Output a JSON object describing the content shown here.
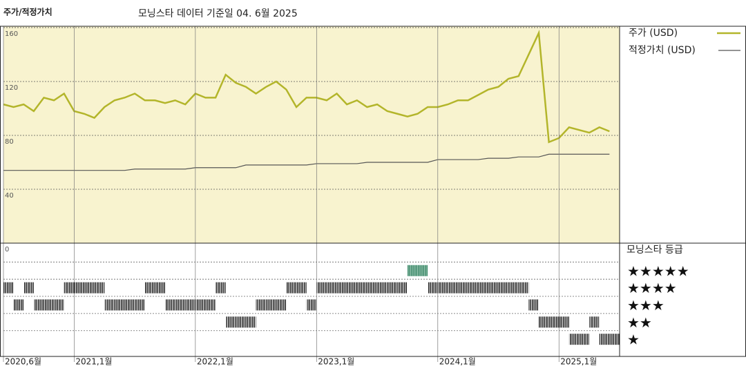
{
  "chart_data": [
    {
      "type": "line",
      "title": "주가/적정가치",
      "subtitle": "모닝스타 데이터 기준일 04. 6월 2025",
      "x": [
        "2020-06",
        "2020-07",
        "2020-08",
        "2020-09",
        "2020-10",
        "2020-11",
        "2020-12",
        "2021-01",
        "2021-02",
        "2021-03",
        "2021-04",
        "2021-05",
        "2021-06",
        "2021-07",
        "2021-08",
        "2021-09",
        "2021-10",
        "2021-11",
        "2021-12",
        "2022-01",
        "2022-02",
        "2022-03",
        "2022-04",
        "2022-05",
        "2022-06",
        "2022-07",
        "2022-08",
        "2022-09",
        "2022-10",
        "2022-11",
        "2022-12",
        "2023-01",
        "2023-02",
        "2023-03",
        "2023-04",
        "2023-05",
        "2023-06",
        "2023-07",
        "2023-08",
        "2023-09",
        "2023-10",
        "2023-11",
        "2023-12",
        "2024-01",
        "2024-02",
        "2024-03",
        "2024-04",
        "2024-05",
        "2024-06",
        "2024-07",
        "2024-08",
        "2024-09",
        "2024-10",
        "2024-11",
        "2024-12",
        "2025-01",
        "2025-02",
        "2025-03",
        "2025-04",
        "2025-05",
        "2025-06"
      ],
      "xlim": [
        "2020-06",
        "2025-07"
      ],
      "series": [
        {
          "name": "주가 (USD)",
          "color": "#b3b52a",
          "values": [
            103,
            101,
            103,
            98,
            108,
            106,
            111,
            98,
            96,
            93,
            101,
            106,
            108,
            111,
            106,
            106,
            104,
            106,
            103,
            111,
            108,
            108,
            125,
            119,
            116,
            111,
            116,
            120,
            114,
            101,
            108,
            108,
            106,
            111,
            103,
            106,
            101,
            103,
            98,
            96,
            94,
            96,
            101,
            101,
            103,
            106,
            106,
            110,
            114,
            116,
            122,
            124,
            140,
            156,
            75,
            78,
            86,
            84,
            82,
            86,
            83
          ]
        },
        {
          "name": "적정가치 (USD)",
          "color": "#555555",
          "values": [
            54,
            54,
            54,
            54,
            54,
            54,
            54,
            54,
            54,
            54,
            54,
            54,
            54,
            55,
            55,
            55,
            55,
            55,
            55,
            56,
            56,
            56,
            56,
            56,
            58,
            58,
            58,
            58,
            58,
            58,
            58,
            59,
            59,
            59,
            59,
            59,
            60,
            60,
            60,
            60,
            60,
            60,
            60,
            62,
            62,
            62,
            62,
            62,
            63,
            63,
            63,
            64,
            64,
            64,
            66,
            66,
            66,
            66,
            66,
            66,
            66
          ]
        }
      ],
      "ylim": [
        0,
        161
      ],
      "yticks": [
        0,
        40,
        80,
        120,
        160
      ],
      "grid": true,
      "background": "#f8f3cf"
    },
    {
      "type": "strip",
      "title": "모닝스타 등급",
      "x": [
        "2020-06",
        "2020-07",
        "2020-08",
        "2020-09",
        "2020-10",
        "2020-11",
        "2020-12",
        "2021-01",
        "2021-02",
        "2021-03",
        "2021-04",
        "2021-05",
        "2021-06",
        "2021-07",
        "2021-08",
        "2021-09",
        "2021-10",
        "2021-11",
        "2021-12",
        "2022-01",
        "2022-02",
        "2022-03",
        "2022-04",
        "2022-05",
        "2022-06",
        "2022-07",
        "2022-08",
        "2022-09",
        "2022-10",
        "2022-11",
        "2022-12",
        "2023-01",
        "2023-02",
        "2023-03",
        "2023-04",
        "2023-05",
        "2023-06",
        "2023-07",
        "2023-08",
        "2023-09",
        "2023-10",
        "2023-11",
        "2023-12",
        "2024-01",
        "2024-02",
        "2024-03",
        "2024-04",
        "2024-05",
        "2024-06",
        "2024-07",
        "2024-08",
        "2024-09",
        "2024-10",
        "2024-11",
        "2024-12",
        "2025-01",
        "2025-02",
        "2025-03",
        "2025-04",
        "2025-05",
        "2025-06"
      ],
      "xlim": [
        "2020-06",
        "2025-07"
      ],
      "values": [
        4,
        3,
        4,
        3,
        3,
        3,
        4,
        4,
        4,
        4,
        3,
        3,
        3,
        3,
        4,
        4,
        3,
        3,
        3,
        3,
        3,
        4,
        2,
        2,
        2,
        3,
        3,
        3,
        4,
        4,
        3,
        4,
        4,
        4,
        4,
        4,
        4,
        4,
        4,
        4,
        5,
        5,
        4,
        4,
        4,
        4,
        4,
        4,
        4,
        4,
        4,
        4,
        3,
        2,
        2,
        2,
        1,
        1,
        2,
        1,
        1
      ],
      "ylim": [
        0,
        6.6
      ],
      "yticks": [
        {
          "value": 5,
          "label": "★★★★★"
        },
        {
          "value": 4,
          "label": "★★★★"
        },
        {
          "value": 3,
          "label": "★★★"
        },
        {
          "value": 2,
          "label": "★★"
        },
        {
          "value": 1,
          "label": "★"
        }
      ],
      "xticks": [
        {
          "value": "2020-06",
          "label": "2020,6월"
        },
        {
          "value": "2021-01",
          "label": "2021,1월"
        },
        {
          "value": "2022-01",
          "label": "2022,1월"
        },
        {
          "value": "2023-01",
          "label": "2023,1월"
        },
        {
          "value": "2024-01",
          "label": "2024,1월"
        },
        {
          "value": "2025-01",
          "label": "2025,1월"
        }
      ],
      "color": "#222222",
      "top_color": "#3f8a6b"
    }
  ]
}
